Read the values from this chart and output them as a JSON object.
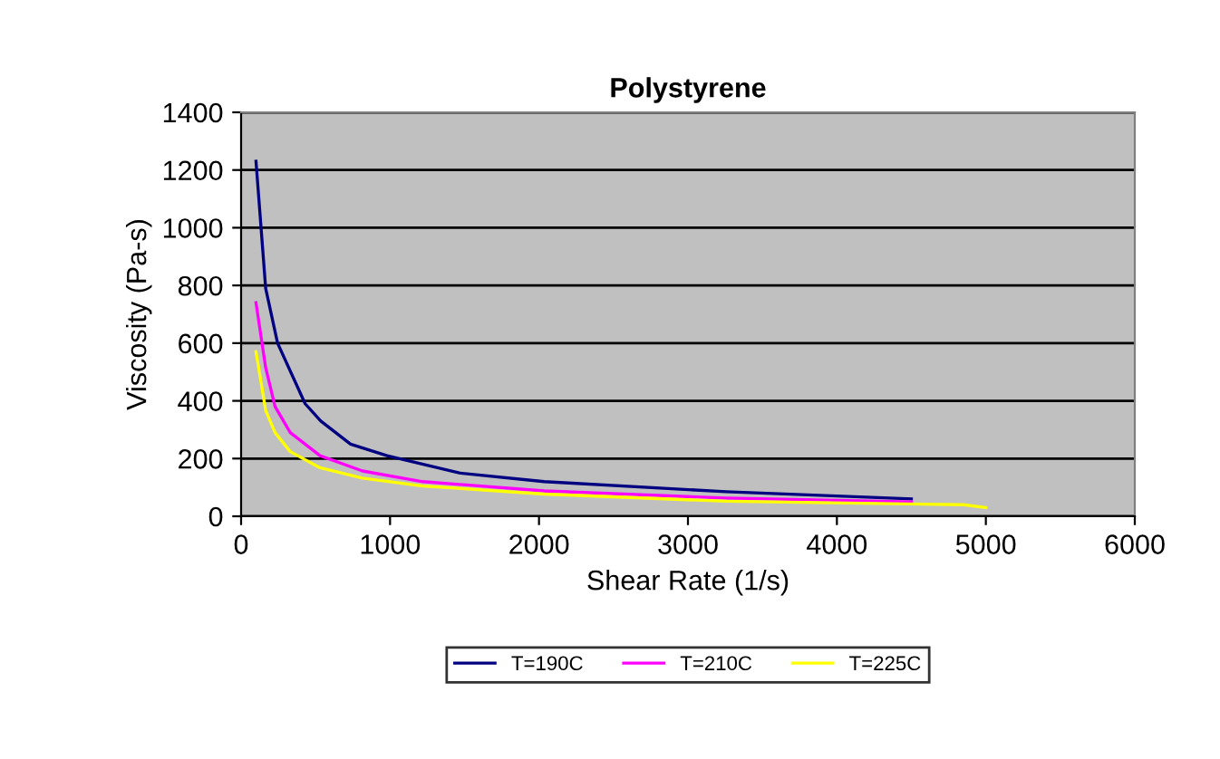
{
  "chart_data": {
    "type": "line",
    "title": "Polystyrene",
    "xlabel": "Shear Rate (1/s)",
    "ylabel": "Viscosity (Pa-s)",
    "xlim": [
      0,
      6000
    ],
    "xticks": [
      0,
      1000,
      2000,
      3000,
      4000,
      5000,
      6000
    ],
    "ylim": [
      0,
      1400
    ],
    "yticks": [
      0,
      200,
      400,
      600,
      800,
      1000,
      1200,
      1400
    ],
    "grid": "y",
    "legend": "bottom",
    "marker": "none",
    "line_style": "solid",
    "series": [
      {
        "name": "T=190C",
        "color": "#000080",
        "x": [
          100,
          165,
          245,
          430,
          535,
          735,
          980,
          1465,
          2035,
          3255,
          4500
        ],
        "values": [
          1230,
          790,
          600,
          390,
          330,
          250,
          210,
          150,
          120,
          85,
          60
        ]
      },
      {
        "name": "T=210C",
        "color": "#ff00ff",
        "x": [
          100,
          165,
          228,
          330,
          530,
          815,
          1220,
          2035,
          3255,
          4500
        ],
        "values": [
          740,
          515,
          380,
          290,
          210,
          157,
          120,
          88,
          63,
          50
        ]
      },
      {
        "name": "T=225C",
        "color": "#ffff00",
        "x": [
          100,
          165,
          228,
          330,
          530,
          815,
          1220,
          2035,
          3255,
          4850,
          5000
        ],
        "values": [
          570,
          367,
          290,
          224,
          168,
          132,
          105,
          77,
          52,
          40,
          30
        ]
      }
    ]
  }
}
